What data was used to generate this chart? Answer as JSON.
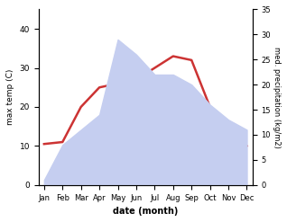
{
  "months": [
    "Jan",
    "Feb",
    "Mar",
    "Apr",
    "May",
    "Jun",
    "Jul",
    "Aug",
    "Sep",
    "Oct",
    "Nov",
    "Dec"
  ],
  "max_temp": [
    10.5,
    11.0,
    20.0,
    25.0,
    26.0,
    27.0,
    30.0,
    33.0,
    32.0,
    20.0,
    15.0,
    10.0
  ],
  "precipitation": [
    1.0,
    8.0,
    11.0,
    14.0,
    29.0,
    26.0,
    22.0,
    22.0,
    20.0,
    16.0,
    13.0,
    11.0
  ],
  "temp_color": "#cc3333",
  "precip_fill_color": "#c5cef0",
  "ylabel_left": "max temp (C)",
  "ylabel_right": "med. precipitation (kg/m2)",
  "xlabel": "date (month)",
  "ylim_left": [
    0,
    45
  ],
  "ylim_right": [
    0,
    35
  ],
  "yticks_left": [
    0,
    10,
    20,
    30,
    40
  ],
  "yticks_right": [
    0,
    5,
    10,
    15,
    20,
    25,
    30,
    35
  ],
  "background_color": "#ffffff"
}
